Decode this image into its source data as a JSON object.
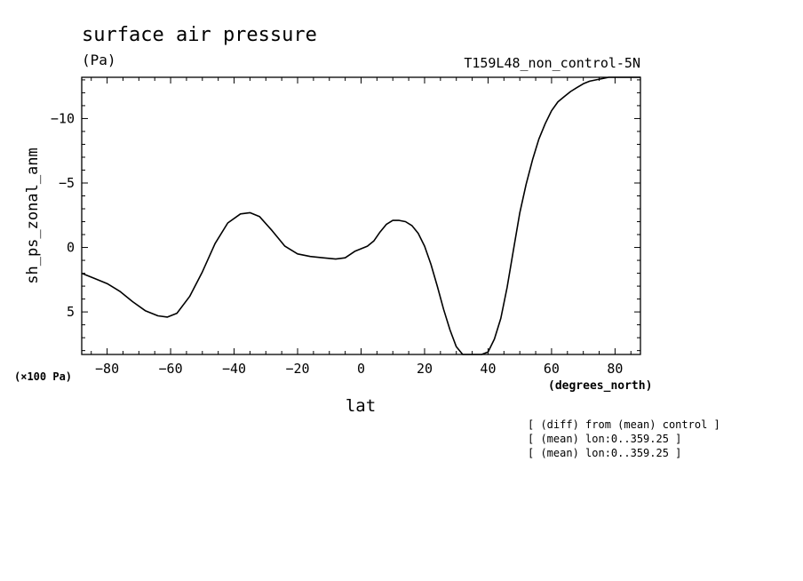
{
  "chart_data": {
    "type": "line",
    "title": "surface air pressure",
    "units": "(Pa)",
    "run_id": "T159L48_non_control-5N",
    "ylabel": "sh_ps_zonal_anm",
    "y_scale_label": "(×100 Pa)",
    "xlabel": "lat",
    "x_units_label": "(degrees_north)",
    "xlim": [
      -88,
      88
    ],
    "ylim": [
      8.3,
      -13.2
    ],
    "y_inverted": true,
    "grid": false,
    "x_ticks": [
      -80,
      -60,
      -40,
      -20,
      0,
      20,
      40,
      60,
      80
    ],
    "x_tick_labels": [
      "−80",
      "−60",
      "−40",
      "−20",
      "0",
      "20",
      "40",
      "60",
      "80"
    ],
    "y_ticks": [
      -10,
      -5,
      0,
      5
    ],
    "y_tick_labels": [
      "−10",
      "−5",
      "0",
      "5"
    ],
    "series": [
      {
        "x": [
          -88,
          -84,
          -80,
          -76,
          -72,
          -68,
          -64,
          -61,
          -58,
          -54,
          -50,
          -46,
          -42,
          -38,
          -35,
          -32,
          -28,
          -24,
          -20,
          -16,
          -12,
          -8,
          -5,
          -2,
          0,
          2,
          4,
          6,
          8,
          10,
          12,
          14,
          16,
          18,
          20,
          22,
          24,
          26,
          28,
          30,
          32,
          34,
          36,
          38,
          40,
          42,
          44,
          46,
          48,
          50,
          52,
          54,
          56,
          58,
          60,
          62,
          64,
          66,
          68,
          70,
          72,
          74,
          76,
          78,
          80,
          82,
          84,
          86,
          88
        ],
        "y": [
          2.0,
          2.4,
          2.8,
          3.4,
          4.2,
          4.9,
          5.3,
          5.4,
          5.1,
          3.8,
          1.9,
          -0.3,
          -1.9,
          -2.6,
          -2.7,
          -2.4,
          -1.3,
          -0.1,
          0.5,
          0.7,
          0.8,
          0.9,
          0.8,
          0.3,
          0.1,
          -0.1,
          -0.5,
          -1.2,
          -1.8,
          -2.1,
          -2.1,
          -2.0,
          -1.7,
          -1.1,
          -0.1,
          1.3,
          3.0,
          4.8,
          6.4,
          7.7,
          8.3,
          8.3,
          8.3,
          8.3,
          8.1,
          7.1,
          5.5,
          3.1,
          0.2,
          -2.7,
          -4.9,
          -6.8,
          -8.4,
          -9.6,
          -10.6,
          -11.3,
          -11.7,
          -12.1,
          -12.4,
          -12.7,
          -12.9,
          -13.0,
          -13.1,
          -13.2,
          -13.2,
          -13.2,
          -13.2,
          -13.2,
          -13.2
        ]
      }
    ]
  },
  "notes": [
    "[ (diff) from (mean) control ]",
    "[ (mean) lon:0..359.25 ]",
    "[ (mean) lon:0..359.25 ]"
  ]
}
